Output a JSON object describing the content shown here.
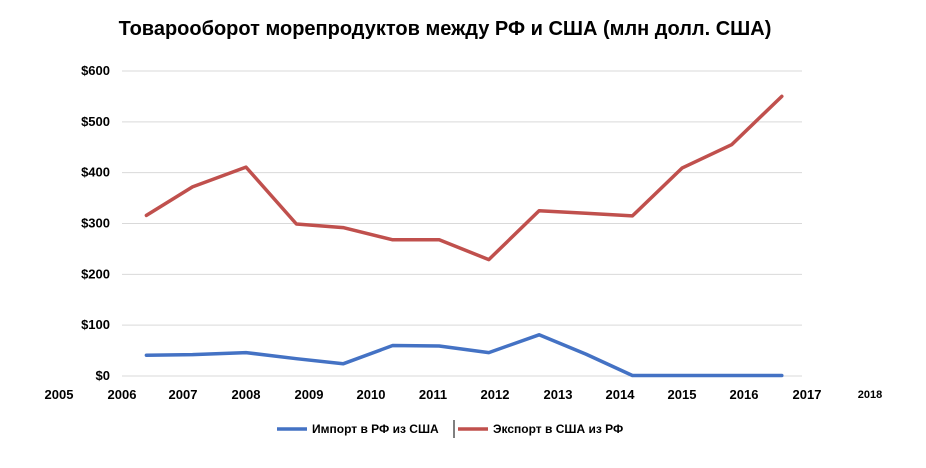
{
  "chart_data": {
    "type": "line",
    "title": "Товарооборот морепродуктов между РФ и США (млн долл. США)",
    "xlabel": "",
    "ylabel": "",
    "x_tick_labels": [
      "2005",
      "2006",
      "2007",
      "2008",
      "2009",
      "2010",
      "2011",
      "2012",
      "2013",
      "2014",
      "2015",
      "2016",
      "2017",
      "2018"
    ],
    "y_tick_labels": [
      "$0",
      "$100",
      "$200",
      "$300",
      "$400",
      "$500",
      "$600"
    ],
    "ylim": [
      0,
      600
    ],
    "x": [
      2006.4,
      2007.15,
      2008.0,
      2008.8,
      2009.55,
      2010.35,
      2011.1,
      2011.9,
      2012.7,
      2013.45,
      2014.2,
      2015.0,
      2015.8,
      2016.6
    ],
    "series": [
      {
        "name": "Импорт в РФ из США",
        "color": "#4472C4",
        "values": [
          41,
          42,
          46,
          34,
          24,
          60,
          59,
          46,
          81,
          43,
          1,
          1,
          1,
          1
        ]
      },
      {
        "name": "Экспорт в США из РФ",
        "color": "#C0504D",
        "values": [
          316,
          372,
          411,
          299,
          292,
          268,
          268,
          229,
          325,
          320,
          315,
          409,
          455,
          550
        ]
      }
    ],
    "grid": true,
    "legend_position": "bottom"
  }
}
